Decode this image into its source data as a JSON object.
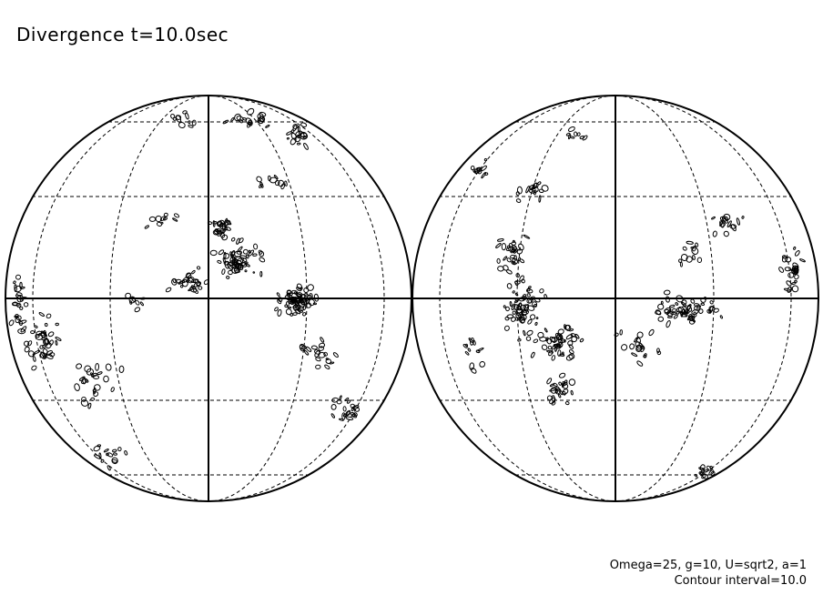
{
  "title": "Divergence t=10.0sec",
  "parameters": "Omega=25, g=10, U=sqrt2, a=1",
  "contour_interval": "Contour interval=10.0",
  "colors": {
    "background": "#ffffff",
    "lines": "#000000"
  }
}
